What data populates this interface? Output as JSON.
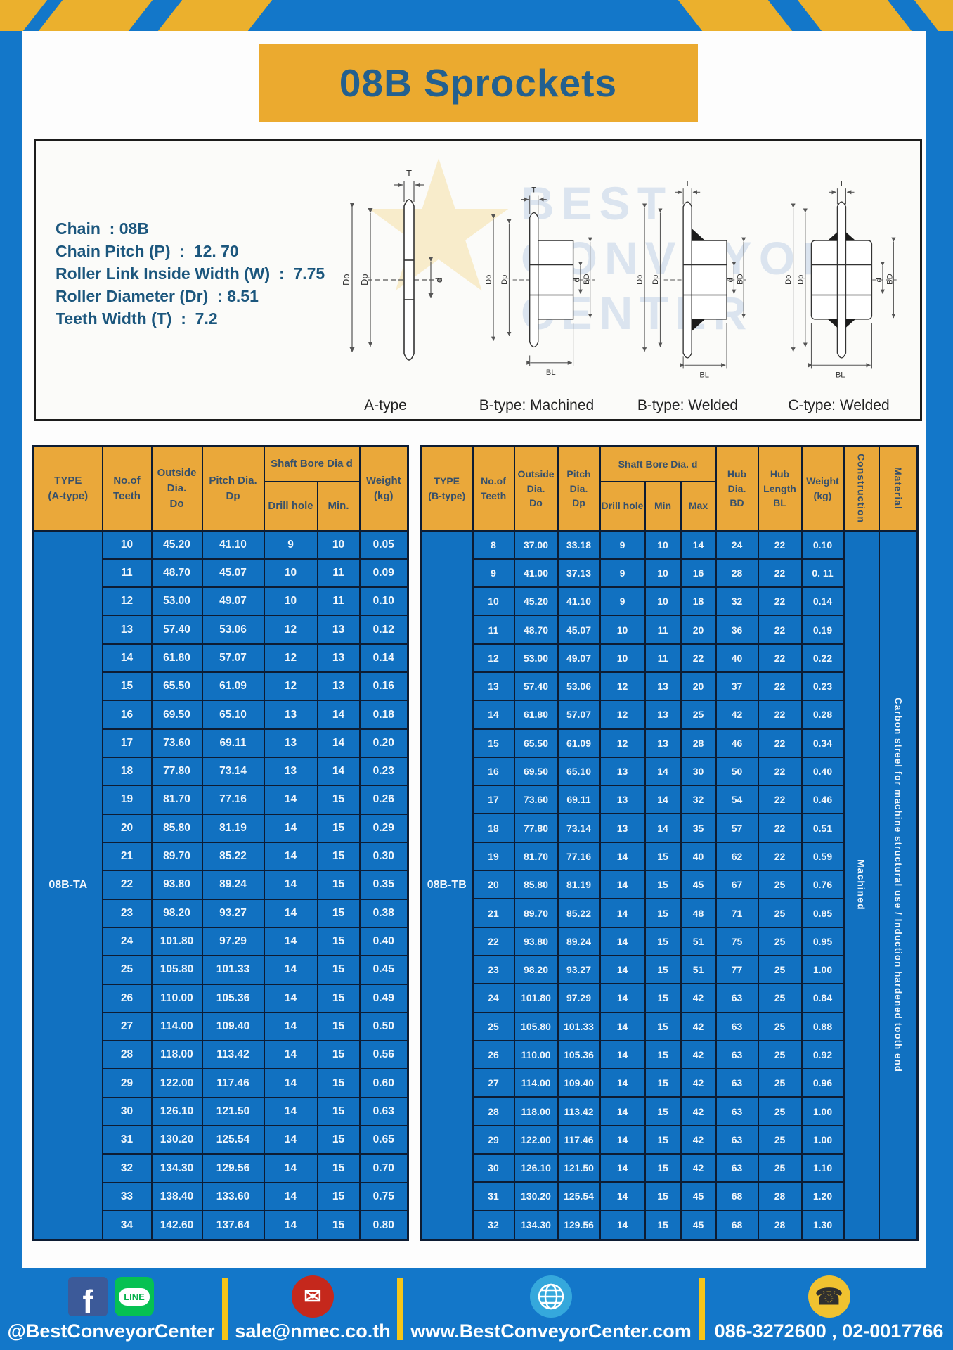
{
  "page": {
    "title": "08B Sprockets"
  },
  "specs": {
    "lines": [
      "Chain  : 08B",
      "Chain Pitch (P)  :  12. 70",
      "Roller Link Inside Width (W)  :  7.75",
      "Roller Diameter (Dr)  : 8.51",
      "Teeth Width (T)  :  7.2"
    ]
  },
  "diagrams": {
    "labels": {
      "T": "T",
      "Do": "Do",
      "Dp": "Dp",
      "d": "d",
      "BD": "BD",
      "BL": "BL"
    },
    "captions": [
      "A-type",
      "B-type: Machined",
      "B-type: Welded",
      "C-type: Welded"
    ],
    "watermark": [
      "BEST",
      "CONVEYOR",
      "CENTER"
    ]
  },
  "table_a": {
    "headers": {
      "type": "TYPE\n(A-type)",
      "teeth": "No.of\nTeeth",
      "outside": "Outside\nDia.\nDo",
      "pitch": "Pitch Dia.\nDp",
      "shaft_bore": "Shaft Bore Dia d",
      "drill": "Drill hole",
      "min": "Min.",
      "weight": "Weight\n(kg)"
    },
    "type_label": "08B-TA",
    "rows": [
      [
        "10",
        "45.20",
        "41.10",
        "9",
        "10",
        "0.05"
      ],
      [
        "11",
        "48.70",
        "45.07",
        "10",
        "11",
        "0.09"
      ],
      [
        "12",
        "53.00",
        "49.07",
        "10",
        "11",
        "0.10"
      ],
      [
        "13",
        "57.40",
        "53.06",
        "12",
        "13",
        "0.12"
      ],
      [
        "14",
        "61.80",
        "57.07",
        "12",
        "13",
        "0.14"
      ],
      [
        "15",
        "65.50",
        "61.09",
        "12",
        "13",
        "0.16"
      ],
      [
        "16",
        "69.50",
        "65.10",
        "13",
        "14",
        "0.18"
      ],
      [
        "17",
        "73.60",
        "69.11",
        "13",
        "14",
        "0.20"
      ],
      [
        "18",
        "77.80",
        "73.14",
        "13",
        "14",
        "0.23"
      ],
      [
        "19",
        "81.70",
        "77.16",
        "14",
        "15",
        "0.26"
      ],
      [
        "20",
        "85.80",
        "81.19",
        "14",
        "15",
        "0.29"
      ],
      [
        "21",
        "89.70",
        "85.22",
        "14",
        "15",
        "0.30"
      ],
      [
        "22",
        "93.80",
        "89.24",
        "14",
        "15",
        "0.35"
      ],
      [
        "23",
        "98.20",
        "93.27",
        "14",
        "15",
        "0.38"
      ],
      [
        "24",
        "101.80",
        "97.29",
        "14",
        "15",
        "0.40"
      ],
      [
        "25",
        "105.80",
        "101.33",
        "14",
        "15",
        "0.45"
      ],
      [
        "26",
        "110.00",
        "105.36",
        "14",
        "15",
        "0.49"
      ],
      [
        "27",
        "114.00",
        "109.40",
        "14",
        "15",
        "0.50"
      ],
      [
        "28",
        "118.00",
        "113.42",
        "14",
        "15",
        "0.56"
      ],
      [
        "29",
        "122.00",
        "117.46",
        "14",
        "15",
        "0.60"
      ],
      [
        "30",
        "126.10",
        "121.50",
        "14",
        "15",
        "0.63"
      ],
      [
        "31",
        "130.20",
        "125.54",
        "14",
        "15",
        "0.65"
      ],
      [
        "32",
        "134.30",
        "129.56",
        "14",
        "15",
        "0.70"
      ],
      [
        "33",
        "138.40",
        "133.60",
        "14",
        "15",
        "0.75"
      ],
      [
        "34",
        "142.60",
        "137.64",
        "14",
        "15",
        "0.80"
      ]
    ]
  },
  "table_b": {
    "headers": {
      "type": "TYPE\n(B-type)",
      "teeth": "No.of\nTeeth",
      "outside": "Outside\nDia.\nDo",
      "pitch": "Pitch\nDia.\nDp",
      "shaft_bore": "Shaft Bore Dia.  d",
      "drill": "Drill hole",
      "min": "Min",
      "max": "Max",
      "hub_dia": "Hub\nDia.\nBD",
      "hub_len": "Hub\nLength\nBL",
      "weight": "Weight\n(kg)",
      "construction": "Construction",
      "material": "Material"
    },
    "type_label": "08B-TB",
    "construction_value": "Machined",
    "material_value": "Carbon streel for machine structural use / Induction hardened tooth end",
    "rows": [
      [
        "8",
        "37.00",
        "33.18",
        "9",
        "10",
        "14",
        "24",
        "22",
        "0.10"
      ],
      [
        "9",
        "41.00",
        "37.13",
        "9",
        "10",
        "16",
        "28",
        "22",
        "0. 11"
      ],
      [
        "10",
        "45.20",
        "41.10",
        "9",
        "10",
        "18",
        "32",
        "22",
        "0.14"
      ],
      [
        "11",
        "48.70",
        "45.07",
        "10",
        "11",
        "20",
        "36",
        "22",
        "0.19"
      ],
      [
        "12",
        "53.00",
        "49.07",
        "10",
        "11",
        "22",
        "40",
        "22",
        "0.22"
      ],
      [
        "13",
        "57.40",
        "53.06",
        "12",
        "13",
        "20",
        "37",
        "22",
        "0.23"
      ],
      [
        "14",
        "61.80",
        "57.07",
        "12",
        "13",
        "25",
        "42",
        "22",
        "0.28"
      ],
      [
        "15",
        "65.50",
        "61.09",
        "12",
        "13",
        "28",
        "46",
        "22",
        "0.34"
      ],
      [
        "16",
        "69.50",
        "65.10",
        "13",
        "14",
        "30",
        "50",
        "22",
        "0.40"
      ],
      [
        "17",
        "73.60",
        "69.11",
        "13",
        "14",
        "32",
        "54",
        "22",
        "0.46"
      ],
      [
        "18",
        "77.80",
        "73.14",
        "13",
        "14",
        "35",
        "57",
        "22",
        "0.51"
      ],
      [
        "19",
        "81.70",
        "77.16",
        "14",
        "15",
        "40",
        "62",
        "22",
        "0.59"
      ],
      [
        "20",
        "85.80",
        "81.19",
        "14",
        "15",
        "45",
        "67",
        "25",
        "0.76"
      ],
      [
        "21",
        "89.70",
        "85.22",
        "14",
        "15",
        "48",
        "71",
        "25",
        "0.85"
      ],
      [
        "22",
        "93.80",
        "89.24",
        "14",
        "15",
        "51",
        "75",
        "25",
        "0.95"
      ],
      [
        "23",
        "98.20",
        "93.27",
        "14",
        "15",
        "51",
        "77",
        "25",
        "1.00"
      ],
      [
        "24",
        "101.80",
        "97.29",
        "14",
        "15",
        "42",
        "63",
        "25",
        "0.84"
      ],
      [
        "25",
        "105.80",
        "101.33",
        "14",
        "15",
        "42",
        "63",
        "25",
        "0.88"
      ],
      [
        "26",
        "110.00",
        "105.36",
        "14",
        "15",
        "42",
        "63",
        "25",
        "0.92"
      ],
      [
        "27",
        "114.00",
        "109.40",
        "14",
        "15",
        "42",
        "63",
        "25",
        "0.96"
      ],
      [
        "28",
        "118.00",
        "113.42",
        "14",
        "15",
        "42",
        "63",
        "25",
        "1.00"
      ],
      [
        "29",
        "122.00",
        "117.46",
        "14",
        "15",
        "42",
        "63",
        "25",
        "1.00"
      ],
      [
        "30",
        "126.10",
        "121.50",
        "14",
        "15",
        "42",
        "63",
        "25",
        "1.10"
      ],
      [
        "31",
        "130.20",
        "125.54",
        "14",
        "15",
        "45",
        "68",
        "28",
        "1.20"
      ],
      [
        "32",
        "134.30",
        "129.56",
        "14",
        "15",
        "45",
        "68",
        "28",
        "1.30"
      ]
    ]
  },
  "footer": {
    "items": [
      {
        "text": "@BestConveyorCenter"
      },
      {
        "text": "sale@nmec.co.th"
      },
      {
        "text": "www.BestConveyorCenter.com"
      },
      {
        "text": "086-3272600 , 02-0017766"
      }
    ],
    "facebook_glyph": "f",
    "line_badge": "LINE",
    "mail_glyph": "✉",
    "phone_glyph": "☎"
  },
  "colors": {
    "frame_blue": "#1377C9",
    "cell_blue": "#1171C1",
    "header_yellow": "#EAA83A",
    "navy_border": "#0D1C33",
    "title_text": "#23608F"
  }
}
